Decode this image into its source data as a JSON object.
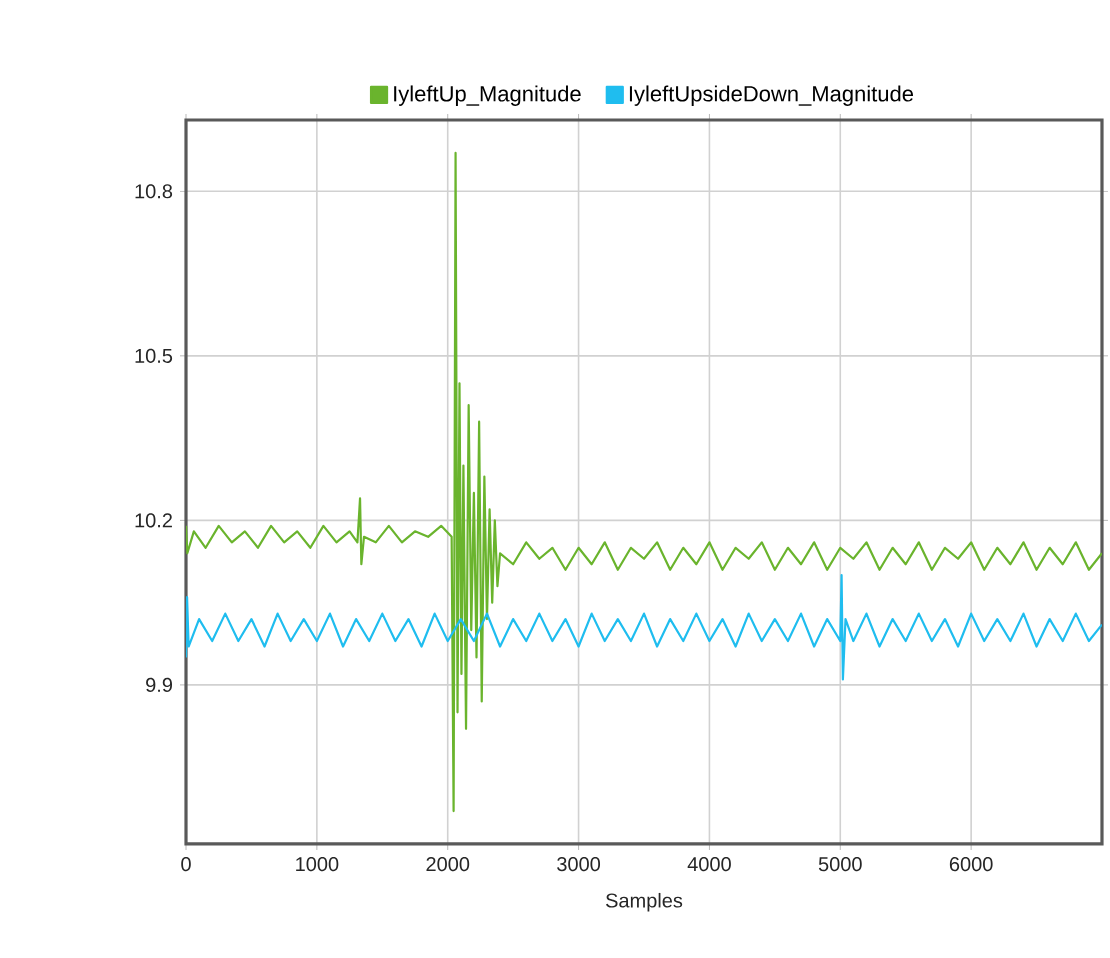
{
  "chart_data": {
    "type": "line",
    "xlabel": "Samples",
    "xlim": [
      0,
      7000
    ],
    "ylim": [
      9.61,
      10.93
    ],
    "xticks": [
      0,
      1000,
      2000,
      3000,
      4000,
      5000,
      6000
    ],
    "yticks": [
      9.9,
      10.2,
      10.5,
      10.8
    ],
    "grid": true,
    "legend": "top",
    "marker": "none",
    "line_style": "solid",
    "series": [
      {
        "name": "IyleftUp_Magnitude",
        "color": "#6ab42d",
        "x": [
          0,
          10,
          60,
          150,
          250,
          350,
          450,
          550,
          650,
          750,
          850,
          950,
          1050,
          1150,
          1250,
          1310,
          1330,
          1340,
          1360,
          1450,
          1550,
          1650,
          1750,
          1850,
          1950,
          2030,
          2045,
          2060,
          2075,
          2090,
          2105,
          2120,
          2140,
          2160,
          2180,
          2200,
          2220,
          2240,
          2260,
          2280,
          2300,
          2320,
          2340,
          2360,
          2380,
          2400,
          2500,
          2600,
          2700,
          2800,
          2900,
          3000,
          3100,
          3200,
          3300,
          3400,
          3500,
          3600,
          3700,
          3800,
          3900,
          4000,
          4100,
          4200,
          4300,
          4400,
          4500,
          4600,
          4700,
          4800,
          4900,
          5000,
          5100,
          5200,
          5300,
          5400,
          5500,
          5600,
          5700,
          5800,
          5900,
          6000,
          6100,
          6200,
          6300,
          6400,
          6500,
          6600,
          6700,
          6800,
          6900,
          7000
        ],
        "values": [
          10.19,
          10.14,
          10.18,
          10.15,
          10.19,
          10.16,
          10.18,
          10.15,
          10.19,
          10.16,
          10.18,
          10.15,
          10.19,
          10.16,
          10.18,
          10.16,
          10.24,
          10.12,
          10.17,
          10.16,
          10.19,
          10.16,
          10.18,
          10.17,
          10.19,
          10.17,
          9.67,
          10.87,
          9.85,
          10.45,
          9.92,
          10.3,
          9.82,
          10.41,
          10.0,
          10.25,
          9.95,
          10.38,
          9.87,
          10.28,
          10.02,
          10.22,
          10.05,
          10.2,
          10.08,
          10.14,
          10.12,
          10.16,
          10.13,
          10.15,
          10.11,
          10.15,
          10.12,
          10.16,
          10.11,
          10.15,
          10.13,
          10.16,
          10.11,
          10.15,
          10.12,
          10.16,
          10.11,
          10.15,
          10.13,
          10.16,
          10.11,
          10.15,
          10.12,
          10.16,
          10.11,
          10.15,
          10.13,
          10.16,
          10.11,
          10.15,
          10.12,
          10.16,
          10.11,
          10.15,
          10.13,
          10.16,
          10.11,
          10.15,
          10.12,
          10.16,
          10.11,
          10.15,
          10.12,
          10.16,
          10.11,
          10.14
        ]
      },
      {
        "name": "IyleftUpsideDown_Magnitude",
        "color": "#1fbdef",
        "x": [
          0,
          8,
          20,
          100,
          200,
          300,
          400,
          500,
          600,
          700,
          800,
          900,
          1000,
          1100,
          1200,
          1300,
          1400,
          1500,
          1600,
          1700,
          1800,
          1900,
          2000,
          2100,
          2200,
          2300,
          2400,
          2500,
          2600,
          2700,
          2800,
          2900,
          3000,
          3100,
          3200,
          3300,
          3400,
          3500,
          3600,
          3700,
          3800,
          3900,
          4000,
          4100,
          4200,
          4300,
          4400,
          4500,
          4600,
          4700,
          4800,
          4900,
          5000,
          5010,
          5020,
          5040,
          5100,
          5200,
          5300,
          5400,
          5500,
          5600,
          5700,
          5800,
          5900,
          6000,
          6100,
          6200,
          6300,
          6400,
          6500,
          6600,
          6700,
          6800,
          6900,
          7000
        ],
        "values": [
          9.95,
          10.06,
          9.97,
          10.02,
          9.98,
          10.03,
          9.98,
          10.02,
          9.97,
          10.03,
          9.98,
          10.02,
          9.98,
          10.03,
          9.97,
          10.02,
          9.98,
          10.03,
          9.98,
          10.02,
          9.97,
          10.03,
          9.98,
          10.02,
          9.98,
          10.03,
          9.97,
          10.02,
          9.98,
          10.03,
          9.98,
          10.02,
          9.97,
          10.03,
          9.98,
          10.02,
          9.98,
          10.03,
          9.97,
          10.02,
          9.98,
          10.03,
          9.98,
          10.02,
          9.97,
          10.03,
          9.98,
          10.02,
          9.98,
          10.03,
          9.97,
          10.02,
          9.98,
          10.1,
          9.91,
          10.02,
          9.98,
          10.03,
          9.97,
          10.02,
          9.98,
          10.03,
          9.98,
          10.02,
          9.97,
          10.03,
          9.98,
          10.02,
          9.98,
          10.03,
          9.97,
          10.02,
          9.98,
          10.03,
          9.98,
          10.01
        ]
      }
    ]
  }
}
